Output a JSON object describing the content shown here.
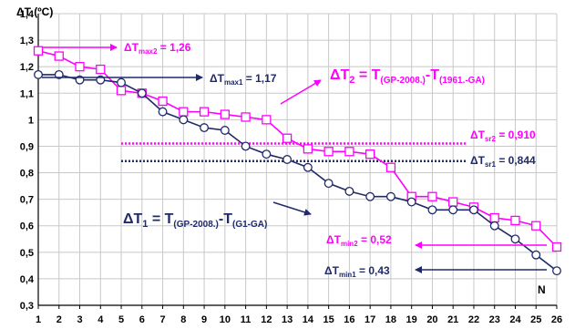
{
  "chart_data": {
    "type": "line",
    "ylabel": "ΔT (ºC)",
    "xlabel": "N",
    "ylim": [
      0.3,
      1.4
    ],
    "y_ticks": [
      "0,3",
      "0,4",
      "0,5",
      "0,6",
      "0,7",
      "0,8",
      "0,9",
      "1",
      "1,1",
      "1,2",
      "1,3",
      "1,4"
    ],
    "x": [
      1,
      2,
      3,
      4,
      5,
      6,
      7,
      8,
      9,
      10,
      11,
      12,
      13,
      14,
      15,
      16,
      17,
      18,
      19,
      20,
      21,
      22,
      23,
      24,
      25,
      26
    ],
    "grid": true,
    "series": [
      {
        "color": "#ff00ff",
        "marker": "square",
        "values": [
          1.26,
          1.24,
          1.2,
          1.19,
          1.11,
          1.1,
          1.07,
          1.03,
          1.03,
          1.02,
          1.01,
          1.0,
          0.93,
          0.89,
          0.88,
          0.88,
          0.87,
          0.82,
          0.71,
          0.71,
          0.69,
          0.67,
          0.63,
          0.62,
          0.6,
          0.52
        ]
      },
      {
        "color": "#1f2a6b",
        "marker": "circle",
        "values": [
          1.17,
          1.17,
          1.15,
          1.15,
          1.14,
          1.1,
          1.03,
          1.0,
          0.97,
          0.96,
          0.9,
          0.87,
          0.85,
          0.82,
          0.76,
          0.73,
          0.71,
          0.71,
          0.69,
          0.66,
          0.66,
          0.66,
          0.6,
          0.55,
          0.49,
          0.43
        ]
      }
    ],
    "reference_lines": [
      {
        "value": 0.91,
        "color": "#ff00ff",
        "style": "dotted"
      },
      {
        "value": 0.844,
        "color": "#1f2a6b",
        "style": "dotted"
      }
    ],
    "annotations": {
      "tmax2": {
        "main": "ΔT",
        "sub": "max2",
        "rest": " = 1,26",
        "color": "#ff00ff"
      },
      "tmax1": {
        "main": "ΔT",
        "sub": "max1",
        "rest": " = 1,17",
        "color": "#1f2a6b"
      },
      "t2": {
        "main": "ΔT",
        "idx": "2",
        "eq": " = T",
        "s1": "(GP-2008.)",
        "mid": "-T",
        "s2": "(1961.-GA)",
        "color": "#ff00ff"
      },
      "tsr2": {
        "main": "ΔT",
        "sub": "sr2",
        "rest": " = 0,910",
        "color": "#ff00ff"
      },
      "tsr1": {
        "main": "ΔT",
        "sub": "sr1",
        "rest": " = 0,844",
        "color": "#1f2a6b"
      },
      "t1": {
        "main": "ΔT",
        "idx": "1",
        "eq": " = T",
        "s1": "(GP-2008.)",
        "mid": "-T",
        "s2": "(G1-GA)",
        "color": "#1f2a6b"
      },
      "tmin2": {
        "main": "ΔT",
        "sub": "min2",
        "rest": " = 0,52",
        "color": "#ff00ff"
      },
      "tmin1": {
        "main": "ΔT",
        "sub": "min1",
        "rest": " = 0,43",
        "color": "#1f2a6b"
      }
    }
  }
}
